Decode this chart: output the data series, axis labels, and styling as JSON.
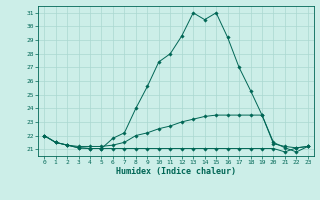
{
  "title": "",
  "xlabel": "Humidex (Indice chaleur)",
  "ylabel": "",
  "bg_color": "#cceee8",
  "grid_color": "#aad8d0",
  "line_color": "#006655",
  "xlim": [
    -0.5,
    23.5
  ],
  "ylim": [
    20.5,
    31.5
  ],
  "yticks": [
    21,
    22,
    23,
    24,
    25,
    26,
    27,
    28,
    29,
    30,
    31
  ],
  "xticks": [
    0,
    1,
    2,
    3,
    4,
    5,
    6,
    7,
    8,
    9,
    10,
    11,
    12,
    13,
    14,
    15,
    16,
    17,
    18,
    19,
    20,
    21,
    22,
    23
  ],
  "line1_x": [
    0,
    1,
    2,
    3,
    4,
    5,
    6,
    7,
    8,
    9,
    10,
    11,
    12,
    13,
    14,
    15,
    16,
    17,
    18,
    19,
    20,
    21,
    22,
    23
  ],
  "line1_y": [
    22.0,
    21.5,
    21.3,
    21.1,
    21.05,
    21.05,
    21.05,
    21.05,
    21.05,
    21.05,
    21.05,
    21.05,
    21.05,
    21.05,
    21.05,
    21.05,
    21.05,
    21.05,
    21.05,
    21.05,
    21.05,
    20.8,
    21.1,
    21.2
  ],
  "line2_x": [
    0,
    1,
    2,
    3,
    4,
    5,
    6,
    7,
    8,
    9,
    10,
    11,
    12,
    13,
    14,
    15,
    16,
    17,
    18,
    19,
    20,
    21,
    22,
    23
  ],
  "line2_y": [
    22.0,
    21.5,
    21.3,
    21.2,
    21.2,
    21.2,
    21.3,
    21.5,
    22.0,
    22.2,
    22.5,
    22.7,
    23.0,
    23.2,
    23.4,
    23.5,
    23.5,
    23.5,
    23.5,
    23.5,
    21.4,
    21.2,
    21.1,
    21.2
  ],
  "line3_x": [
    0,
    1,
    2,
    3,
    4,
    5,
    6,
    7,
    8,
    9,
    10,
    11,
    12,
    13,
    14,
    15,
    16,
    17,
    18,
    19,
    20,
    21,
    22,
    23
  ],
  "line3_y": [
    22.0,
    21.5,
    21.3,
    21.1,
    21.05,
    21.05,
    21.8,
    22.2,
    24.0,
    25.6,
    27.4,
    28.0,
    29.3,
    31.0,
    30.5,
    31.0,
    29.2,
    27.0,
    25.3,
    23.5,
    21.5,
    21.1,
    20.8,
    21.2
  ]
}
